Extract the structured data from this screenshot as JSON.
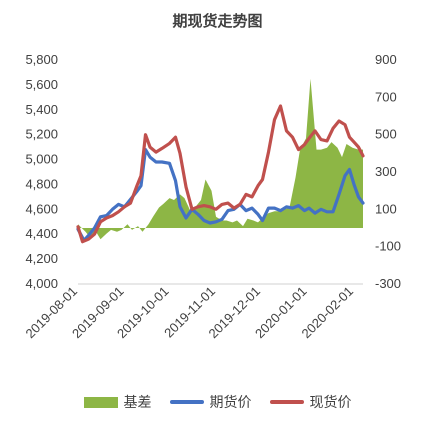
{
  "chart_data": {
    "type": "line",
    "title": "期现货走势图",
    "colors": {
      "basis": "#8DB645",
      "futures": "#4472C4",
      "spot": "#C0504D"
    },
    "y_left": {
      "ticks": [
        "5,800",
        "5,600",
        "5,400",
        "5,200",
        "5,000",
        "4,800",
        "4,600",
        "4,400",
        "4,200",
        "4,000"
      ],
      "range": [
        4000,
        5800
      ]
    },
    "y_right": {
      "ticks": [
        "900",
        "700",
        "500",
        "300",
        "100",
        "-100",
        "-300"
      ],
      "range": [
        -300,
        900
      ]
    },
    "x_ticks": [
      "2019-08-01",
      "2019-09-01",
      "2019-10-01",
      "2019-11-01",
      "2019-12-01",
      "2020-01-01",
      "2020-02-01"
    ],
    "x_range": [
      "2019-08-01",
      "2020-02-07"
    ],
    "series": [
      {
        "name": "基差",
        "type": "area",
        "axis": "right",
        "points": [
          [
            "2019-08-01",
            20
          ],
          [
            "2019-08-06",
            -20
          ],
          [
            "2019-08-09",
            -50
          ],
          [
            "2019-08-13",
            -20
          ],
          [
            "2019-08-16",
            -60
          ],
          [
            "2019-08-20",
            -30
          ],
          [
            "2019-08-23",
            -10
          ],
          [
            "2019-08-27",
            -20
          ],
          [
            "2019-08-30",
            -10
          ],
          [
            "2019-09-03",
            20
          ],
          [
            "2019-09-06",
            -10
          ],
          [
            "2019-09-10",
            10
          ],
          [
            "2019-09-13",
            -20
          ],
          [
            "2019-09-17",
            20
          ],
          [
            "2019-09-20",
            60
          ],
          [
            "2019-09-24",
            110
          ],
          [
            "2019-09-27",
            130
          ],
          [
            "2019-10-01",
            160
          ],
          [
            "2019-10-04",
            150
          ],
          [
            "2019-10-08",
            180
          ],
          [
            "2019-10-11",
            160
          ],
          [
            "2019-10-15",
            90
          ],
          [
            "2019-10-18",
            110
          ],
          [
            "2019-10-22",
            150
          ],
          [
            "2019-10-25",
            260
          ],
          [
            "2019-10-29",
            200
          ],
          [
            "2019-11-01",
            60
          ],
          [
            "2019-11-05",
            40
          ],
          [
            "2019-11-08",
            40
          ],
          [
            "2019-11-12",
            30
          ],
          [
            "2019-11-15",
            40
          ],
          [
            "2019-11-19",
            10
          ],
          [
            "2019-11-22",
            50
          ],
          [
            "2019-11-26",
            40
          ],
          [
            "2019-11-29",
            30
          ],
          [
            "2019-12-03",
            60
          ],
          [
            "2019-12-06",
            80
          ],
          [
            "2019-12-10",
            90
          ],
          [
            "2019-12-13",
            90
          ],
          [
            "2019-12-17",
            100
          ],
          [
            "2019-12-20",
            110
          ],
          [
            "2019-12-24",
            270
          ],
          [
            "2019-12-27",
            420
          ],
          [
            "2019-12-31",
            480
          ],
          [
            "2020-01-03",
            800
          ],
          [
            "2020-01-07",
            420
          ],
          [
            "2020-01-10",
            420
          ],
          [
            "2020-01-14",
            430
          ],
          [
            "2020-01-17",
            460
          ],
          [
            "2020-01-21",
            430
          ],
          [
            "2020-01-24",
            380
          ],
          [
            "2020-01-27",
            450
          ],
          [
            "2020-01-31",
            430
          ],
          [
            "2020-02-04",
            420
          ],
          [
            "2020-02-07",
            420
          ]
        ]
      },
      {
        "name": "期货价",
        "type": "line",
        "axis": "left",
        "points": [
          [
            "2019-08-01",
            4440
          ],
          [
            "2019-08-05",
            4350
          ],
          [
            "2019-08-08",
            4390
          ],
          [
            "2019-08-12",
            4450
          ],
          [
            "2019-08-16",
            4540
          ],
          [
            "2019-08-20",
            4550
          ],
          [
            "2019-08-24",
            4600
          ],
          [
            "2019-08-28",
            4640
          ],
          [
            "2019-09-01",
            4620
          ],
          [
            "2019-09-05",
            4680
          ],
          [
            "2019-09-09",
            4740
          ],
          [
            "2019-09-12",
            4790
          ],
          [
            "2019-09-15",
            5080
          ],
          [
            "2019-09-18",
            5020
          ],
          [
            "2019-09-22",
            4980
          ],
          [
            "2019-09-26",
            4980
          ],
          [
            "2019-10-01",
            4970
          ],
          [
            "2019-10-05",
            4830
          ],
          [
            "2019-10-08",
            4620
          ],
          [
            "2019-10-12",
            4530
          ],
          [
            "2019-10-16",
            4600
          ],
          [
            "2019-10-20",
            4560
          ],
          [
            "2019-10-24",
            4510
          ],
          [
            "2019-10-28",
            4490
          ],
          [
            "2019-11-01",
            4500
          ],
          [
            "2019-11-05",
            4520
          ],
          [
            "2019-11-09",
            4590
          ],
          [
            "2019-11-13",
            4600
          ],
          [
            "2019-11-17",
            4640
          ],
          [
            "2019-11-21",
            4590
          ],
          [
            "2019-11-25",
            4610
          ],
          [
            "2019-11-29",
            4560
          ],
          [
            "2019-12-02",
            4510
          ],
          [
            "2019-12-06",
            4610
          ],
          [
            "2019-12-10",
            4610
          ],
          [
            "2019-12-14",
            4590
          ],
          [
            "2019-12-18",
            4620
          ],
          [
            "2019-12-22",
            4610
          ],
          [
            "2019-12-26",
            4630
          ],
          [
            "2019-12-30",
            4590
          ],
          [
            "2020-01-02",
            4610
          ],
          [
            "2020-01-06",
            4570
          ],
          [
            "2020-01-10",
            4600
          ],
          [
            "2020-01-14",
            4580
          ],
          [
            "2020-01-18",
            4580
          ],
          [
            "2020-01-22",
            4720
          ],
          [
            "2020-01-26",
            4870
          ],
          [
            "2020-01-29",
            4920
          ],
          [
            "2020-02-01",
            4800
          ],
          [
            "2020-02-04",
            4700
          ],
          [
            "2020-02-07",
            4650
          ]
        ]
      },
      {
        "name": "现货价",
        "type": "line",
        "axis": "left",
        "points": [
          [
            "2019-08-01",
            4460
          ],
          [
            "2019-08-04",
            4340
          ],
          [
            "2019-08-08",
            4360
          ],
          [
            "2019-08-12",
            4400
          ],
          [
            "2019-08-16",
            4500
          ],
          [
            "2019-08-20",
            4530
          ],
          [
            "2019-08-24",
            4550
          ],
          [
            "2019-08-28",
            4580
          ],
          [
            "2019-09-01",
            4620
          ],
          [
            "2019-09-05",
            4650
          ],
          [
            "2019-09-09",
            4780
          ],
          [
            "2019-09-12",
            4870
          ],
          [
            "2019-09-15",
            5200
          ],
          [
            "2019-09-18",
            5100
          ],
          [
            "2019-09-22",
            5060
          ],
          [
            "2019-09-26",
            5090
          ],
          [
            "2019-10-01",
            5130
          ],
          [
            "2019-10-05",
            5180
          ],
          [
            "2019-10-08",
            5050
          ],
          [
            "2019-10-12",
            4780
          ],
          [
            "2019-10-16",
            4600
          ],
          [
            "2019-10-20",
            4620
          ],
          [
            "2019-10-24",
            4630
          ],
          [
            "2019-10-28",
            4620
          ],
          [
            "2019-11-01",
            4600
          ],
          [
            "2019-11-05",
            4640
          ],
          [
            "2019-11-09",
            4650
          ],
          [
            "2019-11-13",
            4610
          ],
          [
            "2019-11-17",
            4640
          ],
          [
            "2019-11-21",
            4720
          ],
          [
            "2019-11-25",
            4700
          ],
          [
            "2019-11-29",
            4790
          ],
          [
            "2019-12-02",
            4840
          ],
          [
            "2019-12-06",
            5060
          ],
          [
            "2019-12-10",
            5320
          ],
          [
            "2019-12-14",
            5430
          ],
          [
            "2019-12-18",
            5230
          ],
          [
            "2019-12-22",
            5180
          ],
          [
            "2019-12-26",
            5080
          ],
          [
            "2019-12-30",
            5120
          ],
          [
            "2020-01-02",
            5170
          ],
          [
            "2020-01-06",
            5230
          ],
          [
            "2020-01-10",
            5160
          ],
          [
            "2020-01-14",
            5150
          ],
          [
            "2020-01-18",
            5250
          ],
          [
            "2020-01-22",
            5310
          ],
          [
            "2020-01-26",
            5280
          ],
          [
            "2020-01-29",
            5180
          ],
          [
            "2020-02-01",
            5140
          ],
          [
            "2020-02-04",
            5100
          ],
          [
            "2020-02-07",
            5030
          ]
        ]
      }
    ],
    "legend_position": "bottom",
    "grid": false
  }
}
